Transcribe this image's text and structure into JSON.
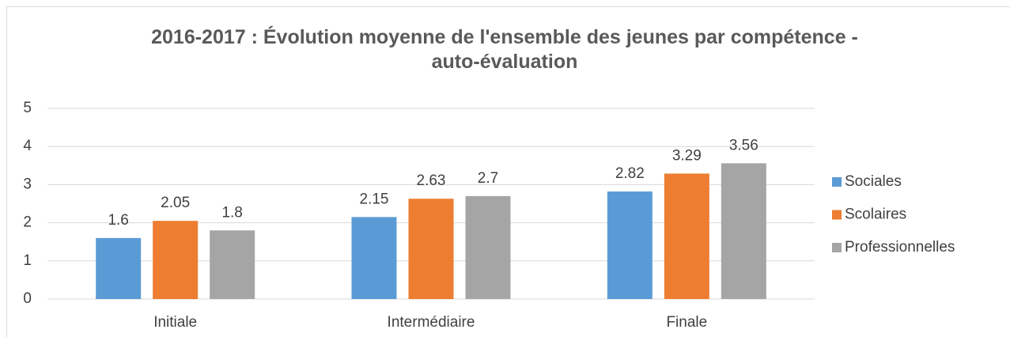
{
  "chart_data": {
    "type": "bar",
    "title": "2016-2017 : Évolution moyenne de l'ensemble des jeunes  par compétence -auto-évaluation",
    "categories": [
      "Initiale",
      "Intermédiaire",
      "Finale"
    ],
    "series": [
      {
        "name": "Sociales",
        "color": "#5b9bd5",
        "values": [
          1.6,
          2.15,
          2.82
        ]
      },
      {
        "name": "Scolaires",
        "color": "#ed7d31",
        "values": [
          2.05,
          2.63,
          3.29
        ]
      },
      {
        "name": "Professionnelles",
        "color": "#a5a5a5",
        "values": [
          1.8,
          2.7,
          3.56
        ]
      }
    ],
    "ylim": [
      0,
      5
    ],
    "yticks": [
      0,
      1,
      2,
      3,
      4,
      5
    ],
    "grid": true,
    "legend": "right"
  }
}
